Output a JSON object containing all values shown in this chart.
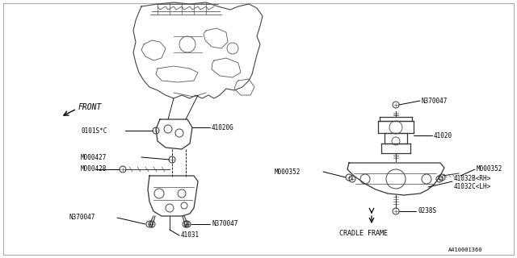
{
  "bg_color": "#ffffff",
  "part_number_ref": "A410001360",
  "lc": "#000000",
  "lw": 0.7,
  "fs": 5.5,
  "front_label": "FRONT",
  "label_41020G": "41020G",
  "label_0101S": "0101S*C",
  "label_M000427": "M000427",
  "label_M000428": "M000428",
  "label_N370047": "N370047",
  "label_41031": "41031",
  "label_41020": "41020",
  "label_M000352": "M000352",
  "label_41032B": "41032B<RH>",
  "label_41032C": "41032C<LH>",
  "label_0238S": "0238S",
  "label_CRADLE": "CRADLE FRAME"
}
